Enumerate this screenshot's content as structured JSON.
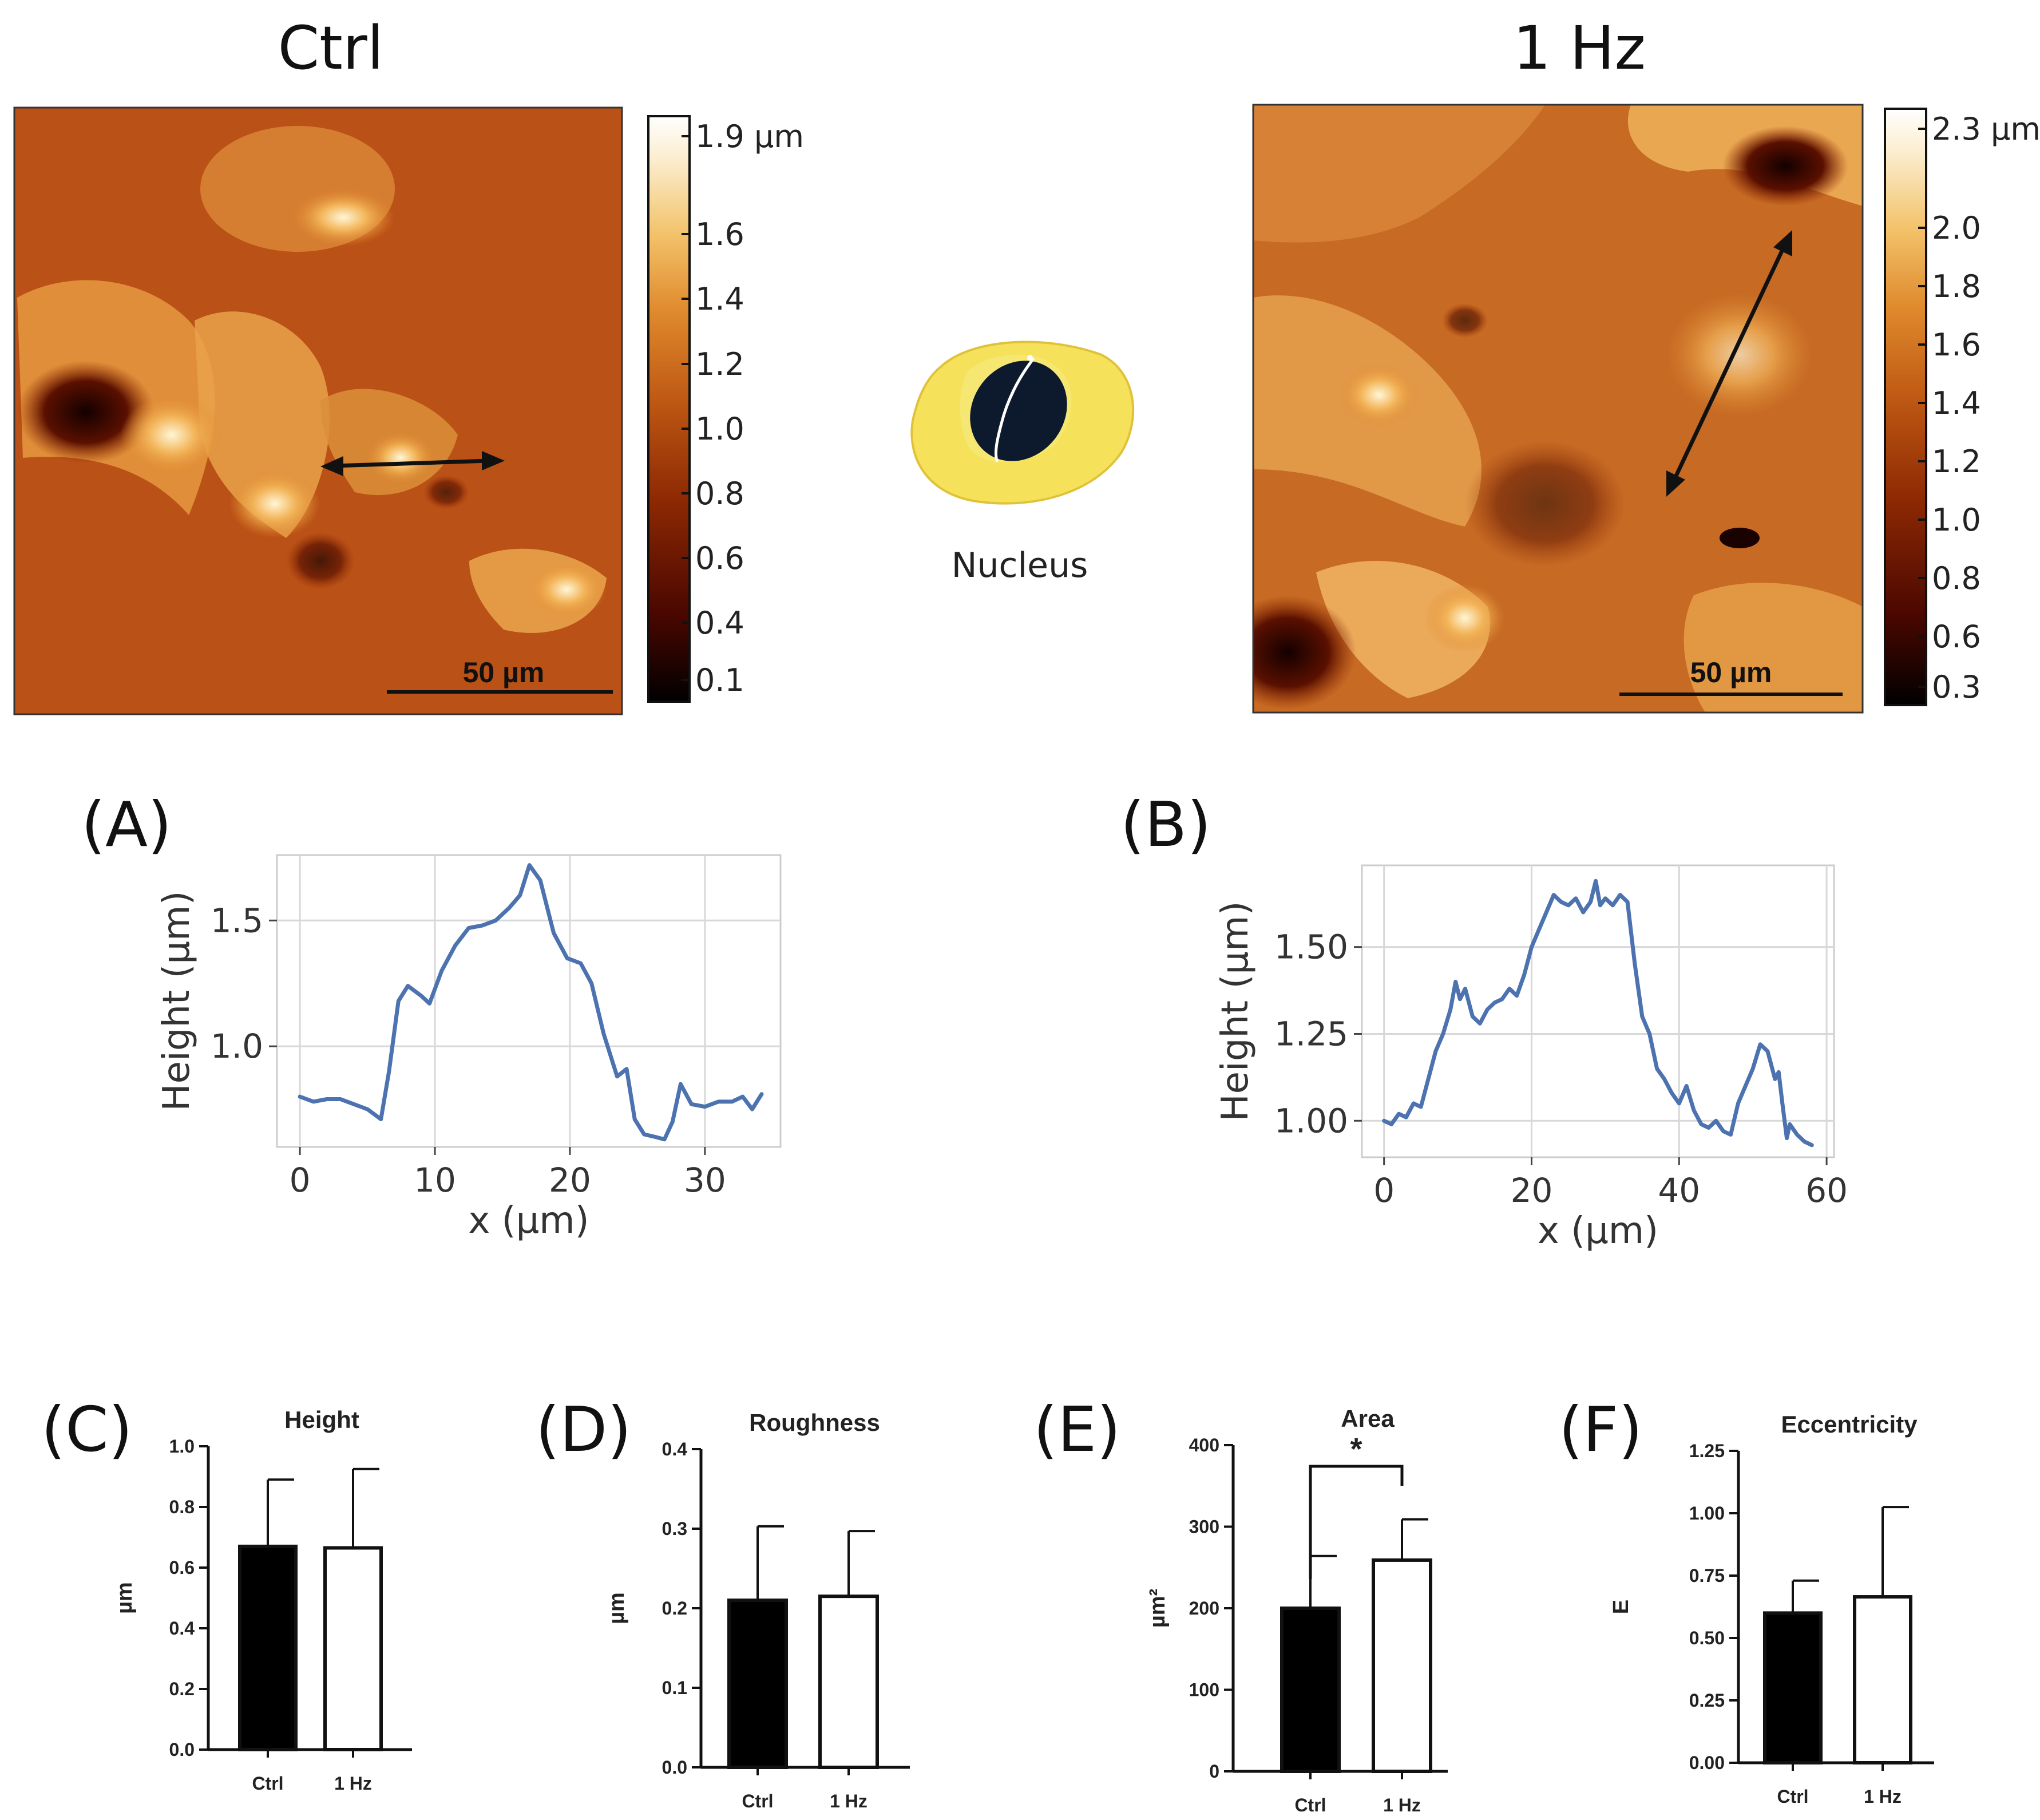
{
  "colors": {
    "afm_stops": [
      "#000000",
      "#4a0700",
      "#8f2a04",
      "#c05a14",
      "#e08b2e",
      "#f3c36b",
      "#fbebc9",
      "#ffffff"
    ],
    "line": "#4c72b0",
    "grid": "#d8d8d8",
    "ctrl_bar": "#000000",
    "hz_bar": "#ffffff",
    "cell_body": "#f5e25a",
    "nucleus": "#0d1a2e"
  },
  "afm": {
    "ctrl": {
      "title": "Ctrl",
      "colorbar_ticks": [
        "1.9 µm",
        "1.6",
        "1.4",
        "1.2",
        "1.0",
        "0.8",
        "0.6",
        "0.4",
        "0.1"
      ],
      "scale_label": "50 µm"
    },
    "hz": {
      "title": "1 Hz",
      "colorbar_ticks": [
        "2.3 µm",
        "2.0",
        "1.8",
        "1.6",
        "1.4",
        "1.2",
        "1.0",
        "0.8",
        "0.6",
        "0.3"
      ],
      "scale_label": "50 µm"
    }
  },
  "nucleus_label": "Nucleus",
  "chart_data": [
    {
      "id": "A",
      "panel": "(A)",
      "type": "line",
      "xlabel": "x (μm)",
      "ylabel": "Height (μm)",
      "xlim": [
        -1.7,
        35.6
      ],
      "ylim": [
        0.6,
        1.76
      ],
      "xticks": [
        0,
        10,
        20,
        30
      ],
      "xtick_labels": [
        "0",
        "10",
        "20",
        "30"
      ],
      "yticks": [
        1.0,
        1.5
      ],
      "ytick_labels": [
        "1.0",
        "1.5"
      ],
      "x": [
        0,
        1,
        2,
        3,
        4,
        5,
        6,
        6.6,
        7.3,
        8,
        9,
        9.6,
        10.5,
        11.5,
        12.5,
        13.5,
        14.5,
        15.5,
        16.3,
        17,
        17.8,
        18.8,
        19.8,
        20.8,
        21.6,
        22.5,
        23.5,
        24.2,
        24.8,
        25.5,
        26.3,
        27,
        27.6,
        28.2,
        29,
        30,
        31,
        32,
        32.8,
        33.5,
        34.2
      ],
      "y": [
        0.8,
        0.78,
        0.79,
        0.79,
        0.77,
        0.75,
        0.71,
        0.9,
        1.18,
        1.24,
        1.2,
        1.17,
        1.3,
        1.4,
        1.47,
        1.48,
        1.5,
        1.55,
        1.6,
        1.72,
        1.66,
        1.45,
        1.35,
        1.33,
        1.25,
        1.05,
        0.88,
        0.91,
        0.71,
        0.65,
        0.64,
        0.63,
        0.7,
        0.85,
        0.77,
        0.76,
        0.78,
        0.78,
        0.8,
        0.75,
        0.81
      ]
    },
    {
      "id": "B",
      "panel": "(B)",
      "type": "line",
      "xlabel": "x (μm)",
      "ylabel": "Height (μm)",
      "xlim": [
        -3,
        61
      ],
      "ylim": [
        0.895,
        1.735
      ],
      "xticks": [
        0,
        20,
        40,
        60
      ],
      "xtick_labels": [
        "0",
        "20",
        "40",
        "60"
      ],
      "yticks": [
        1.0,
        1.25,
        1.5
      ],
      "ytick_labels": [
        "1.00",
        "1.25",
        "1.50"
      ],
      "x": [
        0,
        1,
        2,
        3,
        4,
        5,
        6,
        7,
        8,
        9,
        9.7,
        10.3,
        11,
        12,
        13,
        14,
        15,
        16,
        17,
        18,
        19,
        20,
        21,
        22,
        23,
        24,
        25,
        26,
        27,
        28,
        28.7,
        29.3,
        30,
        31,
        32,
        33,
        34,
        35,
        36,
        37,
        38,
        39,
        40,
        41,
        42,
        43,
        44,
        45,
        46,
        47,
        48,
        49,
        50,
        51,
        52,
        53,
        53.5,
        54,
        54.6,
        55,
        56,
        57,
        58
      ],
      "y": [
        1.0,
        0.99,
        1.02,
        1.01,
        1.05,
        1.04,
        1.12,
        1.2,
        1.25,
        1.32,
        1.4,
        1.35,
        1.38,
        1.3,
        1.28,
        1.32,
        1.34,
        1.35,
        1.38,
        1.36,
        1.42,
        1.5,
        1.55,
        1.6,
        1.65,
        1.63,
        1.62,
        1.64,
        1.6,
        1.63,
        1.69,
        1.62,
        1.64,
        1.62,
        1.65,
        1.63,
        1.45,
        1.3,
        1.25,
        1.15,
        1.12,
        1.08,
        1.05,
        1.1,
        1.03,
        0.99,
        0.98,
        1.0,
        0.97,
        0.96,
        1.05,
        1.1,
        1.15,
        1.22,
        1.2,
        1.12,
        1.14,
        1.05,
        0.95,
        0.99,
        0.96,
        0.94,
        0.93
      ]
    },
    {
      "id": "C",
      "panel": "(C)",
      "type": "bar",
      "title": "Height",
      "ylabel": "µm",
      "categories": [
        "Ctrl",
        "1 Hz"
      ],
      "values": [
        0.67,
        0.665
      ],
      "errors": [
        0.22,
        0.26
      ],
      "ylim": [
        0,
        1.0
      ],
      "yticks": [
        0,
        0.2,
        0.4,
        0.6,
        0.8,
        1.0
      ],
      "ytick_labels": [
        "0.0",
        "0.2",
        "0.4",
        "0.6",
        "0.8",
        "1.0"
      ]
    },
    {
      "id": "D",
      "panel": "(D)",
      "type": "bar",
      "title": "Roughness",
      "ylabel": "µm",
      "categories": [
        "Ctrl",
        "1 Hz"
      ],
      "values": [
        0.21,
        0.215
      ],
      "errors": [
        0.093,
        0.082
      ],
      "ylim": [
        0,
        0.4
      ],
      "yticks": [
        0,
        0.1,
        0.2,
        0.3,
        0.4
      ],
      "ytick_labels": [
        "0.0",
        "0.1",
        "0.2",
        "0.3",
        "0.4"
      ]
    },
    {
      "id": "E",
      "panel": "(E)",
      "type": "bar",
      "title": "Area",
      "ylabel": "µm²",
      "categories": [
        "Ctrl",
        "1 Hz"
      ],
      "values": [
        200,
        259
      ],
      "errors": [
        64,
        50
      ],
      "ylim": [
        0,
        400
      ],
      "yticks": [
        0,
        100,
        200,
        300,
        400
      ],
      "ytick_labels": [
        "0",
        "100",
        "200",
        "300",
        "400"
      ],
      "significance": "*"
    },
    {
      "id": "F",
      "panel": "(F)",
      "type": "bar",
      "title": "Eccentricity",
      "ylabel": "E",
      "categories": [
        "Ctrl",
        "1 Hz"
      ],
      "values": [
        0.6,
        0.665
      ],
      "errors": [
        0.13,
        0.36
      ],
      "ylim": [
        0,
        1.25
      ],
      "yticks": [
        0,
        0.25,
        0.5,
        0.75,
        1.0,
        1.25
      ],
      "ytick_labels": [
        "0.00",
        "0.25",
        "0.50",
        "0.75",
        "1.00",
        "1.25"
      ]
    }
  ]
}
